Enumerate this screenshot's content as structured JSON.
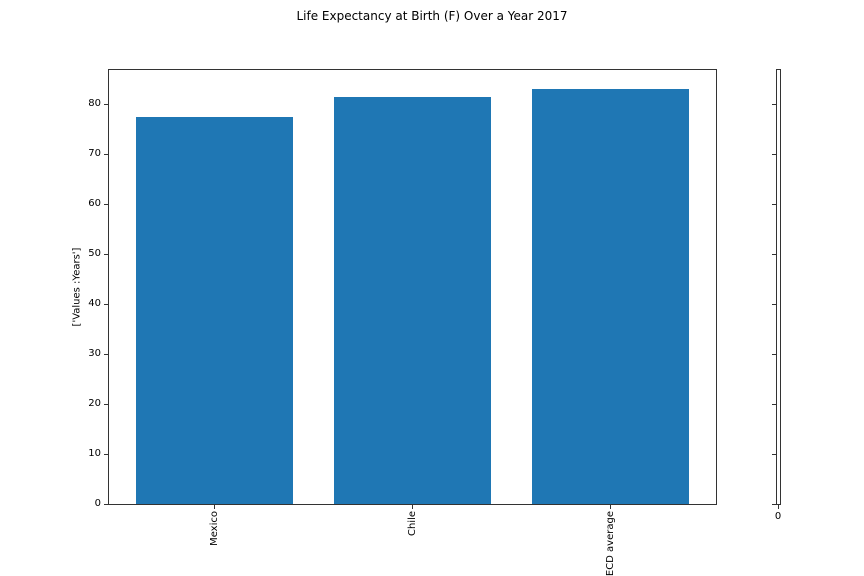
{
  "title": "Life Expectancy at Birth (F) Over a Year 2017",
  "colors": {
    "bar": "#1f77b4",
    "spine": "#333333",
    "text": "#000000",
    "background": "#ffffff"
  },
  "chart_data": {
    "type": "bar",
    "title": "Life Expectancy at Birth (F) Over a Year 2017",
    "categories": [
      "Mexico",
      "Chile",
      "OECD average"
    ],
    "values": [
      77.4,
      81.4,
      82.9
    ],
    "xlabel": "",
    "ylabel": "['Values :Years']",
    "ylim": [
      0,
      87
    ],
    "yticks": [
      0,
      10,
      20,
      30,
      40,
      50,
      60,
      70,
      80
    ],
    "grid": false,
    "legend": "none",
    "bar_color": "#1f77b4",
    "xtick_rotation": "vertical"
  },
  "secondary_axis": {
    "yticks": [
      0,
      10,
      20,
      30,
      40,
      50,
      60,
      70,
      80
    ],
    "ytick_labels_visible": false,
    "xtick_label": "0"
  }
}
